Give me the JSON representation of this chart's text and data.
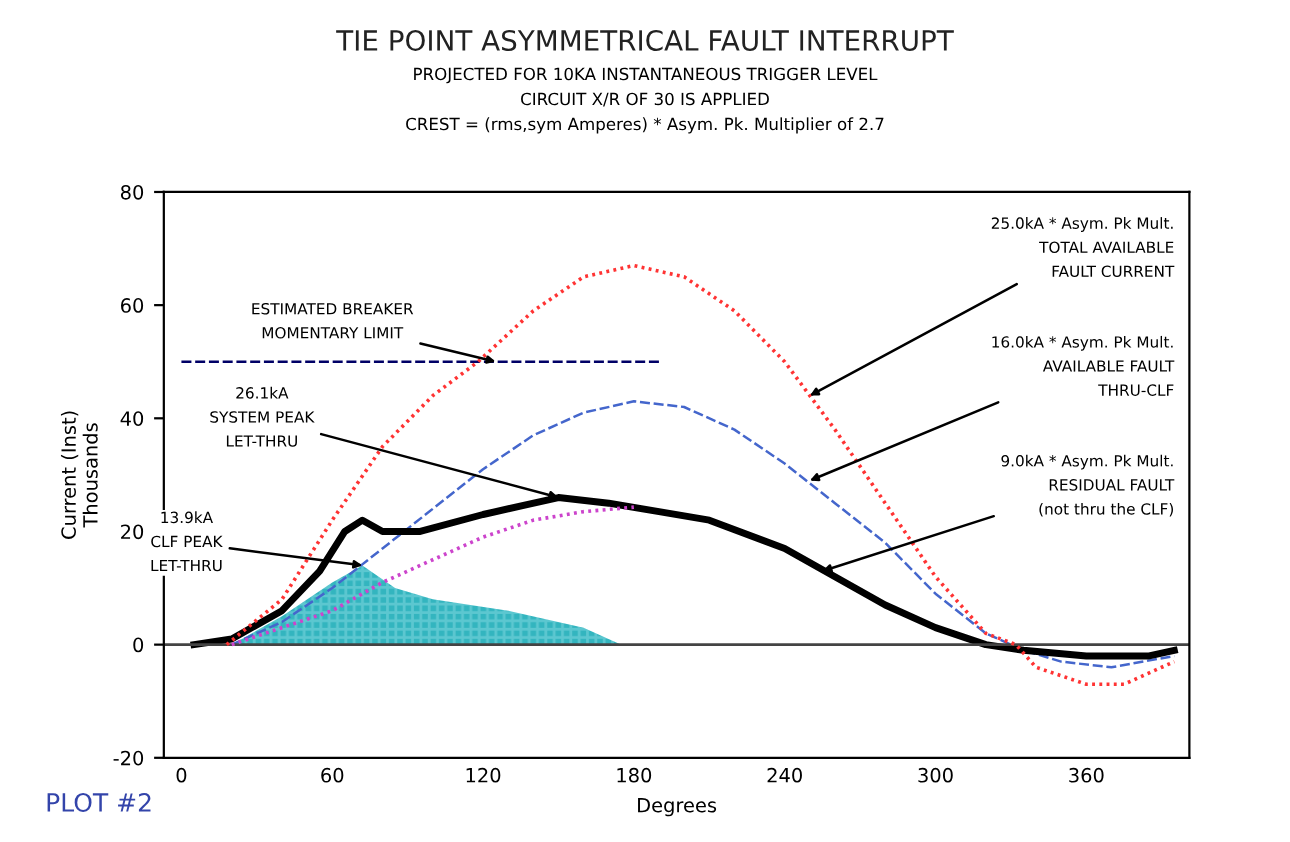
{
  "chart_data": {
    "type": "line",
    "title": "TIE POINT ASYMMETRICAL FAULT INTERRUPT",
    "subtitle": "PROJECTED FOR 10KA INSTANTANEOUS TRIGGER LEVEL\nCIRCUIT X/R OF 30 IS APPLIED\nCREST = (rms,sym Amperes) * Asym. Pk. Multiplier of 2.7",
    "xlabel": "Degrees",
    "ylabel": "Current (Inst)\nThousands",
    "xlim": [
      -7,
      401
    ],
    "ylim": [
      -20,
      80
    ],
    "xticks": [
      0,
      60,
      120,
      180,
      240,
      300,
      360
    ],
    "yticks": [
      -20,
      0,
      20,
      40,
      60,
      80
    ],
    "grid": false,
    "legend": false,
    "ref_lines": [
      {
        "axis": "y",
        "value": 0,
        "color": "#444444"
      }
    ],
    "series": [
      {
        "type": "area",
        "color": "#33b5bf",
        "x": [
          20,
          40,
          60,
          72,
          85,
          100,
          130,
          160,
          175
        ],
        "values": [
          0,
          5,
          11,
          14,
          10,
          8,
          6,
          3,
          0
        ]
      },
      {
        "color": "#ff3333",
        "line_style": "dotted",
        "x": [
          18,
          40,
          60,
          80,
          100,
          118,
          140,
          160,
          180,
          200,
          220,
          240,
          260,
          280,
          300,
          320,
          332,
          340,
          360,
          375,
          390,
          395
        ],
        "values": [
          0,
          8,
          22,
          35,
          44,
          50,
          59,
          65,
          67,
          65,
          59,
          50,
          38,
          25,
          12,
          2,
          0,
          -4,
          -7,
          -7,
          -4,
          -3
        ]
      },
      {
        "color": "#4466cc",
        "line_style": "dashed",
        "x": [
          20,
          40,
          60,
          80,
          100,
          120,
          140,
          160,
          180,
          200,
          220,
          240,
          260,
          280,
          300,
          320,
          335,
          350,
          370,
          395
        ],
        "values": [
          0,
          4,
          10,
          17,
          24,
          31,
          37,
          41,
          43,
          42,
          38,
          32,
          25,
          18,
          9,
          2,
          -1,
          -3,
          -4,
          -2
        ]
      },
      {
        "color": "#cc44cc",
        "line_style": "dotted",
        "x": [
          20,
          60,
          80,
          100,
          120,
          140,
          160,
          180
        ],
        "values": [
          0,
          6,
          11,
          15,
          19,
          22,
          23.5,
          24.3
        ]
      },
      {
        "color": "#000000",
        "line_style": "solid",
        "x": [
          5,
          20,
          40,
          55,
          65,
          72,
          80,
          95,
          120,
          150,
          170,
          190,
          210,
          240,
          260,
          280,
          300,
          320,
          335,
          360,
          385,
          395
        ],
        "values": [
          0,
          1,
          6,
          13,
          20,
          22,
          20,
          20,
          23,
          26,
          25,
          23.5,
          22,
          17,
          12,
          7,
          3,
          0,
          -1,
          -2,
          -2,
          -1
        ]
      },
      {
        "color": "#000066",
        "line_style": "dashed",
        "x": [
          0,
          190
        ],
        "values": [
          50,
          50
        ]
      }
    ],
    "annotations": [
      {
        "text": "ESTIMATED BREAKER\nMOMENTARY LIMIT",
        "x": 125,
        "y": 50
      },
      {
        "text": "26.1kA\nSYSTEM PEAK\nLET-THRU",
        "x": 150,
        "y": 26
      },
      {
        "text": "13.9kA\nCLF PEAK\nLET-THRU",
        "x": 72,
        "y": 14
      },
      {
        "text": "25.0kA * Asym. Pk Mult.\nTOTAL AVAILABLE\nFAULT CURRENT",
        "x": 250,
        "y": 44
      },
      {
        "text": "16.0kA * Asym. Pk Mult.\nAVAILABLE FAULT\nTHRU-CLF",
        "x": 250,
        "y": 29
      },
      {
        "text": "9.0kA * Asym. Pk Mult.\nRESIDUAL FAULT\n(not thru the CLF)",
        "x": 255,
        "y": 13
      },
      "PLOT #2"
    ]
  }
}
